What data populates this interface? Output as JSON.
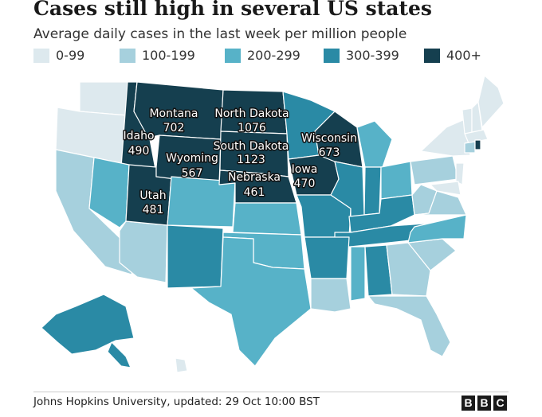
{
  "title": "Cases still high in several US states",
  "subtitle": "Average daily cases in the last week per million people",
  "legend": [
    {
      "label": "0-99",
      "color": "#dde9ee"
    },
    {
      "label": "100-199",
      "color": "#a6d0dd"
    },
    {
      "label": "200-299",
      "color": "#57b2c8"
    },
    {
      "label": "300-399",
      "color": "#2a8aa5"
    },
    {
      "label": "400+",
      "color": "#153f4f"
    }
  ],
  "states": [
    {
      "name": "Montana",
      "value": "702"
    },
    {
      "name": "North Dakota",
      "value": "1076"
    },
    {
      "name": "Idaho",
      "value": "490"
    },
    {
      "name": "South Dakota",
      "value": "1123"
    },
    {
      "name": "Wisconsin",
      "value": "673"
    },
    {
      "name": "Wyoming",
      "value": "567"
    },
    {
      "name": "Iowa",
      "value": "470"
    },
    {
      "name": "Nebraska",
      "value": "461"
    },
    {
      "name": "Utah",
      "value": "481"
    }
  ],
  "source": "Johns Hopkins University, updated: 29 Oct 10:00 BST",
  "brand": [
    "B",
    "B",
    "C"
  ]
}
